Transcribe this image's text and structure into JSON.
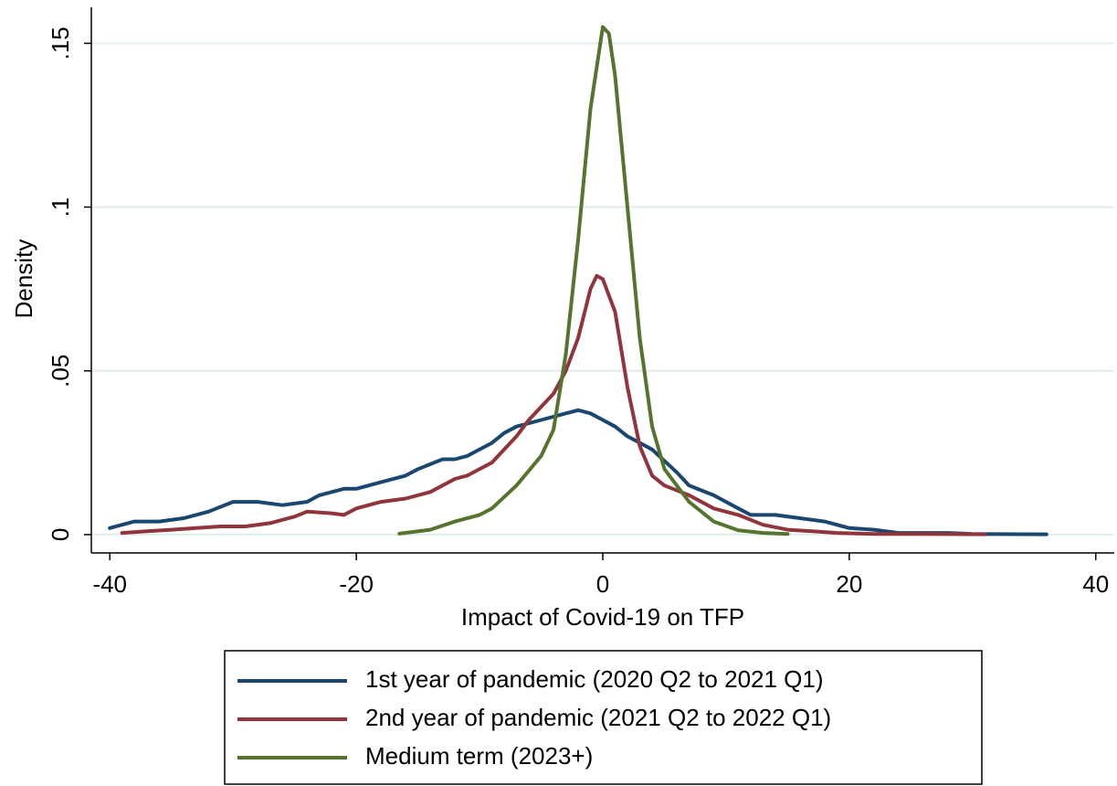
{
  "chart_data": {
    "type": "line",
    "x_label": "Impact of Covid-19 on TFP",
    "y_label": "Density",
    "xlim": [
      -41.5,
      41.5
    ],
    "ylim": [
      -0.0056,
      0.161
    ],
    "xticks": [
      -40,
      -20,
      0,
      20,
      40
    ],
    "yticks": [
      0,
      {
        "value": 0.05,
        "label": ".05"
      },
      {
        "value": 0.1,
        "label": ".1"
      },
      {
        "value": 0.15,
        "label": ".15"
      }
    ],
    "grid": true,
    "legend": "bottom",
    "series": [
      {
        "name": "1st year of pandemic (2020 Q2 to 2021 Q1)",
        "color": "#1a476f",
        "x": [
          -40,
          -38,
          -36,
          -34,
          -32,
          -30,
          -28,
          -26,
          -24,
          -23,
          -21,
          -20,
          -18,
          -16,
          -15,
          -13,
          -12,
          -11,
          -9,
          -8,
          -7,
          -5,
          -3,
          -2,
          -1,
          0,
          1,
          2,
          4,
          6,
          7,
          9,
          11,
          12,
          14,
          16,
          18,
          20,
          22,
          24,
          28,
          30,
          36
        ],
        "values": [
          0.002,
          0.004,
          0.004,
          0.005,
          0.007,
          0.01,
          0.01,
          0.009,
          0.01,
          0.012,
          0.014,
          0.014,
          0.016,
          0.018,
          0.02,
          0.023,
          0.023,
          0.024,
          0.028,
          0.031,
          0.033,
          0.035,
          0.037,
          0.038,
          0.037,
          0.035,
          0.033,
          0.03,
          0.026,
          0.019,
          0.015,
          0.012,
          0.008,
          0.006,
          0.006,
          0.005,
          0.004,
          0.002,
          0.0015,
          0.0005,
          0.0005,
          0.0002,
          0.0001
        ]
      },
      {
        "name": "2nd year of pandemic (2021 Q2 to 2022 Q1)",
        "color": "#90353b",
        "x": [
          -39,
          -37,
          -35,
          -33,
          -31,
          -29,
          -27,
          -25,
          -24,
          -22,
          -21,
          -20,
          -18,
          -16,
          -14,
          -12,
          -11,
          -9,
          -7,
          -6,
          -4,
          -3,
          -2,
          -1,
          -0.5,
          0,
          1,
          2,
          3,
          4,
          5,
          7,
          9,
          11,
          13,
          15,
          17,
          19,
          22,
          26,
          31
        ],
        "values": [
          0.0005,
          0.001,
          0.0015,
          0.002,
          0.0025,
          0.0025,
          0.0035,
          0.0055,
          0.007,
          0.0065,
          0.006,
          0.008,
          0.01,
          0.011,
          0.013,
          0.017,
          0.018,
          0.022,
          0.03,
          0.035,
          0.043,
          0.05,
          0.06,
          0.075,
          0.079,
          0.078,
          0.068,
          0.045,
          0.027,
          0.018,
          0.015,
          0.012,
          0.008,
          0.006,
          0.003,
          0.0015,
          0.001,
          0.0005,
          0.0002,
          0.0002,
          0.0001
        ]
      },
      {
        "name": "Medium term (2023+)",
        "color": "#55752f",
        "x": [
          -16.5,
          -14,
          -12,
          -10,
          -9,
          -7,
          -5,
          -4,
          -3,
          -2,
          -1,
          0,
          0.5,
          1,
          2,
          3,
          4,
          5,
          7,
          9,
          11,
          13,
          15
        ],
        "values": [
          0.0003,
          0.0015,
          0.004,
          0.006,
          0.008,
          0.015,
          0.024,
          0.032,
          0.055,
          0.09,
          0.13,
          0.155,
          0.153,
          0.14,
          0.1,
          0.06,
          0.033,
          0.02,
          0.01,
          0.004,
          0.0013,
          0.0005,
          0.0002
        ]
      }
    ]
  }
}
